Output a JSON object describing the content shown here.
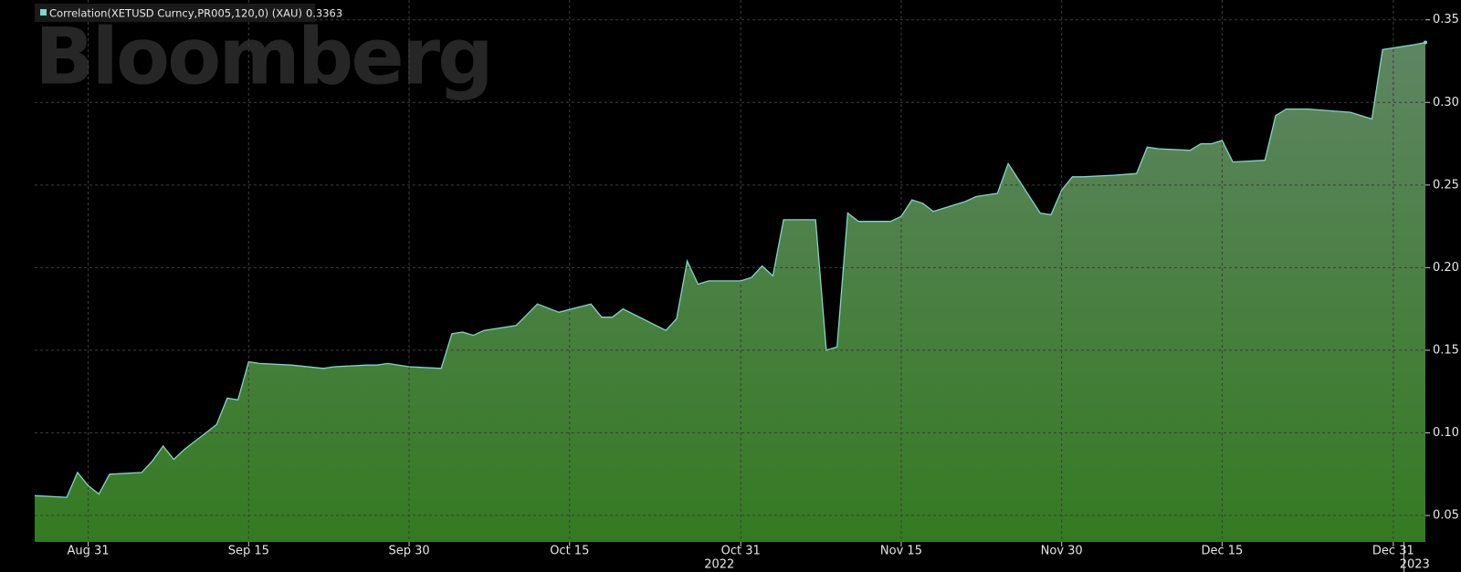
{
  "chart_data": {
    "type": "area",
    "watermark": "Bloomberg",
    "series": [
      {
        "name": "Correlation(XETUSD Curncy,PR005,120,0) (XAU)",
        "color": "#7fd6cc",
        "x": [
          "2022-08-26",
          "2022-08-29",
          "2022-08-30",
          "2022-08-31",
          "2022-09-01",
          "2022-09-02",
          "2022-09-05",
          "2022-09-06",
          "2022-09-07",
          "2022-09-08",
          "2022-09-09",
          "2022-09-12",
          "2022-09-13",
          "2022-09-14",
          "2022-09-15",
          "2022-09-16",
          "2022-09-19",
          "2022-09-22",
          "2022-09-23",
          "2022-09-26",
          "2022-09-27",
          "2022-09-28",
          "2022-09-30",
          "2022-10-03",
          "2022-10-04",
          "2022-10-05",
          "2022-10-06",
          "2022-10-07",
          "2022-10-10",
          "2022-10-12",
          "2022-10-14",
          "2022-10-17",
          "2022-10-18",
          "2022-10-19",
          "2022-10-20",
          "2022-10-24",
          "2022-10-25",
          "2022-10-26",
          "2022-10-27",
          "2022-10-28",
          "2022-10-31",
          "2022-11-01",
          "2022-11-02",
          "2022-11-03",
          "2022-11-04",
          "2022-11-07",
          "2022-11-08",
          "2022-11-09",
          "2022-11-10",
          "2022-11-11",
          "2022-11-14",
          "2022-11-15",
          "2022-11-16",
          "2022-11-17",
          "2022-11-18",
          "2022-11-21",
          "2022-11-22",
          "2022-11-24",
          "2022-11-25",
          "2022-11-28",
          "2022-11-29",
          "2022-11-30",
          "2022-12-01",
          "2022-12-02",
          "2022-12-05",
          "2022-12-07",
          "2022-12-08",
          "2022-12-09",
          "2022-12-12",
          "2022-12-13",
          "2022-12-14",
          "2022-12-15",
          "2022-12-16",
          "2022-12-19",
          "2022-12-20",
          "2022-12-21",
          "2022-12-23",
          "2022-12-27",
          "2022-12-29",
          "2022-12-30",
          "2023-01-02",
          "2023-01-03"
        ],
        "values": [
          0.062,
          0.061,
          0.076,
          0.068,
          0.063,
          0.075,
          0.076,
          0.083,
          0.092,
          0.084,
          0.09,
          0.105,
          0.121,
          0.12,
          0.143,
          0.142,
          0.141,
          0.139,
          0.14,
          0.141,
          0.141,
          0.142,
          0.14,
          0.139,
          0.16,
          0.161,
          0.159,
          0.162,
          0.165,
          0.178,
          0.173,
          0.178,
          0.17,
          0.17,
          0.175,
          0.162,
          0.169,
          0.204,
          0.19,
          0.192,
          0.192,
          0.194,
          0.201,
          0.195,
          0.229,
          0.229,
          0.15,
          0.152,
          0.233,
          0.228,
          0.228,
          0.231,
          0.241,
          0.239,
          0.234,
          0.24,
          0.243,
          0.245,
          0.263,
          0.233,
          0.232,
          0.247,
          0.255,
          0.255,
          0.256,
          0.257,
          0.273,
          0.272,
          0.271,
          0.275,
          0.275,
          0.277,
          0.264,
          0.265,
          0.292,
          0.296,
          0.296,
          0.294,
          0.29,
          0.332,
          0.335,
          0.3363
        ]
      }
    ],
    "xlim": [
      "2022-08-26",
      "2023-01-03"
    ],
    "xticks": [
      {
        "value": "2022-08-31",
        "label": "Aug 31"
      },
      {
        "value": "2022-09-15",
        "label": "Sep 15"
      },
      {
        "value": "2022-09-30",
        "label": "Sep 30"
      },
      {
        "value": "2022-10-15",
        "label": "Oct 15"
      },
      {
        "value": "2022-10-31",
        "label": "Oct 31"
      },
      {
        "value": "2022-11-15",
        "label": "Nov 15"
      },
      {
        "value": "2022-11-30",
        "label": "Nov 30"
      },
      {
        "value": "2022-12-15",
        "label": "Dec 15"
      },
      {
        "value": "2022-12-31",
        "label": "Dec 31"
      }
    ],
    "year_labels": [
      "2022",
      "2023"
    ],
    "ylim": [
      0.034,
      0.362
    ],
    "yticks": [
      0.05,
      {
        "value": 0.1,
        "label": "0.10"
      },
      0.15,
      {
        "value": 0.2,
        "label": "0.20"
      },
      0.25,
      {
        "value": 0.3,
        "label": "0.30"
      },
      0.35
    ],
    "grid": true
  }
}
